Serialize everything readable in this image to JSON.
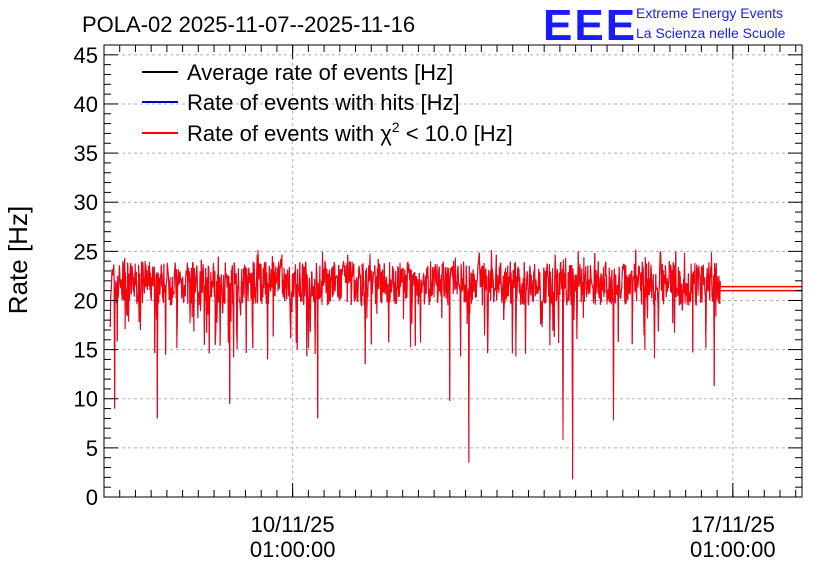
{
  "chart_data": {
    "type": "line",
    "title": "POLA-02 2025-11-07--2025-11-16",
    "ylabel": "Rate [Hz]",
    "xlabel": "",
    "ylim": [
      0,
      46
    ],
    "xlim_days": [
      0,
      11.1
    ],
    "y_ticks": [
      0,
      5,
      10,
      15,
      20,
      25,
      30,
      35,
      40,
      45
    ],
    "x_ticks": [
      {
        "pos_day": 3.0,
        "label_line1": "10/11/25",
        "label_line2": "01:00:00"
      },
      {
        "pos_day": 10.0,
        "label_line1": "17/11/25",
        "label_line2": "01:00:00"
      }
    ],
    "grid": true,
    "legend_position": "top-left",
    "series": [
      {
        "name": "Average rate of events [Hz]",
        "color": "#000000",
        "mean": 22.0
      },
      {
        "name": "Rate of events with hits [Hz]",
        "color": "#0000cc",
        "mean": 22.0
      },
      {
        "name": "Rate of events with",
        "suffix": " < 10.0 [Hz]",
        "symbol": "χ",
        "superscript": "2",
        "color": "#ff0000",
        "mean": 22.0
      }
    ],
    "data_start_day": 0.1,
    "data_end_day": 9.8,
    "band_low": 19.5,
    "band_high": 24.0,
    "average_level_after": 21.0,
    "dips": [
      {
        "day": 0.1,
        "value": 17.3
      },
      {
        "day": 0.17,
        "value": 9.0
      },
      {
        "day": 0.85,
        "value": 8.0
      },
      {
        "day": 1.6,
        "value": 15.5
      },
      {
        "day": 2.0,
        "value": 9.5
      },
      {
        "day": 2.6,
        "value": 14.0
      },
      {
        "day": 3.4,
        "value": 8.0
      },
      {
        "day": 4.15,
        "value": 13.5
      },
      {
        "day": 5.5,
        "value": 9.8
      },
      {
        "day": 5.8,
        "value": 3.5
      },
      {
        "day": 7.3,
        "value": 5.8
      },
      {
        "day": 7.45,
        "value": 1.8
      },
      {
        "day": 8.1,
        "value": 7.8
      },
      {
        "day": 8.6,
        "value": 15.0
      },
      {
        "day": 9.7,
        "value": 11.3
      }
    ]
  },
  "logo": {
    "text": "EEE",
    "line1": "Extreme Energy Events",
    "line2": "La Scienza nelle Scuole"
  }
}
